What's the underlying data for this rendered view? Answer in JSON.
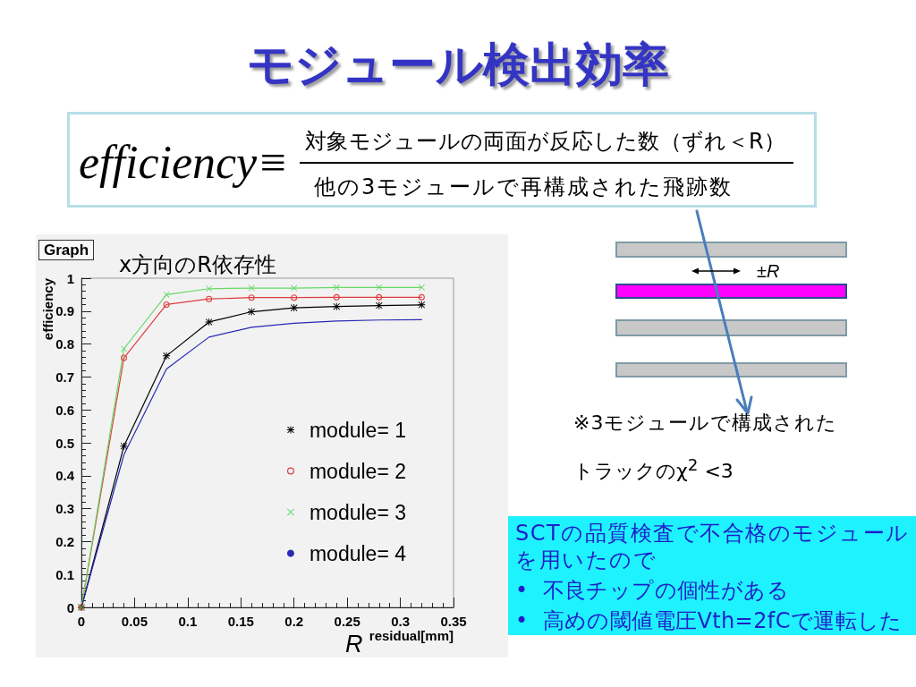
{
  "chart_data": {
    "type": "line",
    "title": "モジュール検出効率",
    "subtitle": "x方向のR依存性",
    "xlabel": "residual[mm]",
    "ylabel": "efficiency",
    "x": [
      0,
      0.04,
      0.08,
      0.12,
      0.16,
      0.2,
      0.24,
      0.28,
      0.32
    ],
    "series": [
      {
        "name": "module= 1",
        "color": "#000000",
        "marker": "star",
        "values": [
          0,
          0.49,
          0.764,
          0.867,
          0.898,
          0.91,
          0.914,
          0.917,
          0.919
        ]
      },
      {
        "name": "module= 2",
        "color": "#e03c3c",
        "marker": "circle",
        "values": [
          0,
          0.758,
          0.92,
          0.937,
          0.941,
          0.941,
          0.942,
          0.942,
          0.942
        ]
      },
      {
        "name": "module= 3",
        "color": "#66d966",
        "marker": "cross",
        "values": [
          0,
          0.786,
          0.95,
          0.968,
          0.97,
          0.97,
          0.972,
          0.972,
          0.972
        ]
      },
      {
        "name": "module= 4",
        "color": "#2828b4",
        "marker": "none",
        "values": [
          0,
          0.464,
          0.724,
          0.821,
          0.851,
          0.863,
          0.87,
          0.873,
          0.874
        ]
      }
    ],
    "xlim": [
      0,
      0.35
    ],
    "xticks": [
      0,
      0.05,
      0.1,
      0.15,
      0.2,
      0.25,
      0.3,
      0.35
    ],
    "ylim": [
      0,
      1
    ],
    "yticks": [
      0,
      0.1,
      0.2,
      0.3,
      0.4,
      0.5,
      0.6,
      0.7,
      0.8,
      0.9,
      1
    ],
    "legend": "bottom right",
    "line_style": "solid",
    "annotations": [
      "Graph",
      "efficiency≡",
      "対象モジュールの両面が反応した数（ずれ＜R）",
      "他の3モジュールで再構成された飛跡数",
      "±R",
      "※3モジュールで構成された",
      "トラックのχ$^{2}$ <3",
      "SCTの品質検査で不合格のモジュール",
      "を用いたので",
      "• 不良チップの個性がある",
      "• 高めの閾値電圧Vth=2fCで運転した",
      "R"
    ]
  }
}
